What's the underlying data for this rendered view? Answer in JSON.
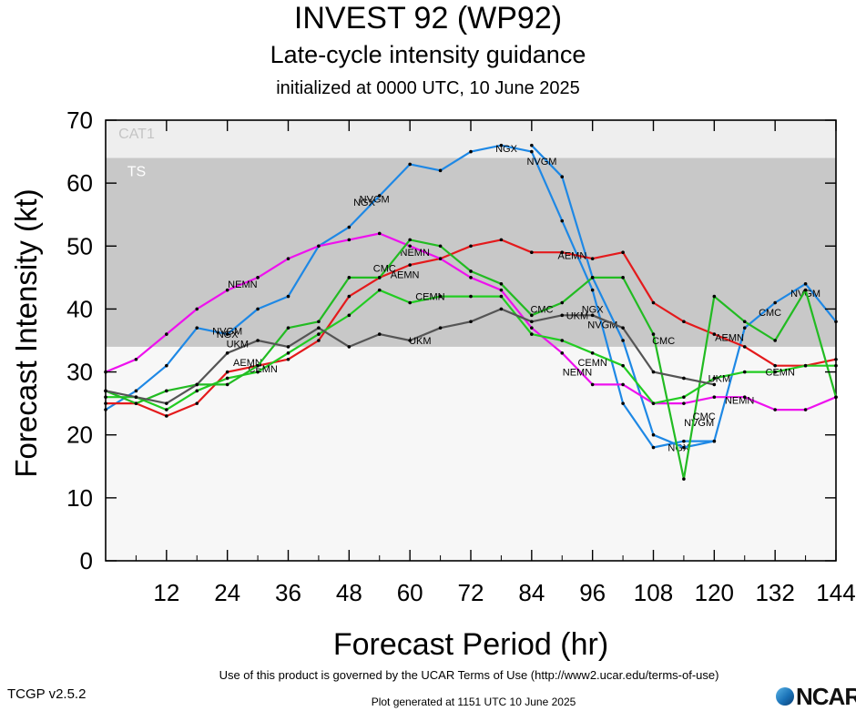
{
  "title": "INVEST 92 (WP92)",
  "subtitle": "Late-cycle intensity guidance",
  "initialized": "initialized at 0000 UTC, 10 June 2025",
  "footer": {
    "terms": "Use of this product is governed by the UCAR Terms of Use (http://www2.ucar.edu/terms-of-use)",
    "version": "TCGP v2.5.2",
    "generated": "Plot generated at 1151 UTC   10 June 2025",
    "logo_text": "NCAR"
  },
  "chart_data": {
    "type": "line",
    "xlabel": "Forecast Period (hr)",
    "ylabel": "Forecast Intensity (kt)",
    "xlim": [
      0,
      144
    ],
    "ylim": [
      0,
      70
    ],
    "xticks": [
      12,
      24,
      36,
      48,
      60,
      72,
      84,
      96,
      108,
      120,
      132,
      144
    ],
    "yticks": [
      0,
      10,
      20,
      30,
      40,
      50,
      60,
      70
    ],
    "bands": [
      {
        "label": "TS",
        "from": 34,
        "to": 64,
        "color": "#c8c8c8"
      },
      {
        "label": "CAT1",
        "from": 64,
        "to": 70,
        "color": "#eeeeee"
      }
    ],
    "series": [
      {
        "name": "NGX",
        "color": "#1e88e5",
        "x": [
          0,
          6,
          12,
          18,
          24,
          30,
          36,
          42,
          48,
          54,
          60,
          66,
          72,
          78,
          84,
          90,
          96,
          102,
          108,
          114,
          120
        ],
        "y": [
          24,
          27,
          31,
          37,
          36,
          40,
          42,
          50,
          53,
          58,
          63,
          62,
          65,
          66,
          65,
          54,
          43,
          25,
          18,
          19,
          19
        ],
        "labels": [
          [
            24,
            36
          ],
          [
            51,
            57
          ],
          [
            79,
            65.5
          ],
          [
            96,
            40
          ],
          [
            113,
            18
          ]
        ]
      },
      {
        "name": "NVGM",
        "color": "#1e88e5",
        "x": [
          84,
          90,
          96,
          102,
          108,
          114,
          120,
          126,
          132,
          138,
          144
        ],
        "y": [
          66,
          61,
          45,
          35,
          20,
          18,
          19,
          37,
          41,
          44,
          38
        ],
        "labels": [
          [
            24,
            36.5
          ],
          [
            53,
            57.5
          ],
          [
            86,
            63.5
          ],
          [
            98,
            37.5
          ],
          [
            117,
            22
          ],
          [
            138,
            42.5
          ]
        ]
      },
      {
        "name": "AEMN",
        "color": "#e41a1c",
        "x": [
          0,
          6,
          12,
          18,
          24,
          30,
          36,
          42,
          48,
          54,
          60,
          66,
          72,
          78,
          84,
          90,
          96,
          102,
          108,
          114,
          120,
          126,
          132,
          138,
          144
        ],
        "y": [
          25,
          25,
          23,
          25,
          30,
          31,
          32,
          35,
          42,
          45,
          47,
          48,
          50,
          51,
          49,
          49,
          48,
          49,
          41,
          38,
          36,
          34,
          31,
          31,
          32
        ],
        "labels": [
          [
            28,
            31.5
          ],
          [
            59,
            45.5
          ],
          [
            92,
            48.5
          ],
          [
            123,
            35.5
          ]
        ]
      },
      {
        "name": "NEMN",
        "color": "#ee11ee",
        "x": [
          0,
          6,
          12,
          18,
          24,
          30,
          36,
          42,
          48,
          54,
          60,
          66,
          72,
          78,
          84,
          90,
          96,
          102,
          108,
          114,
          120,
          126,
          132,
          138,
          144
        ],
        "y": [
          30,
          32,
          36,
          40,
          43,
          45,
          48,
          50,
          51,
          52,
          50,
          48,
          45,
          43,
          37,
          33,
          28,
          28,
          25,
          25,
          26,
          26,
          24,
          24,
          26
        ],
        "labels": [
          [
            27,
            44
          ],
          [
            61,
            49
          ],
          [
            93,
            30
          ],
          [
            125,
            25.5
          ]
        ]
      },
      {
        "name": "CEMN",
        "color": "#22cc22",
        "x": [
          0,
          6,
          12,
          18,
          24,
          30,
          36,
          42,
          48,
          54,
          60,
          66,
          72,
          78,
          84,
          90,
          96,
          102,
          108,
          114,
          120,
          126,
          132,
          138,
          144
        ],
        "y": [
          26,
          26,
          24,
          27,
          29,
          30,
          33,
          36,
          39,
          43,
          41,
          42,
          42,
          42,
          36,
          35,
          33,
          31,
          25,
          26,
          29,
          30,
          30,
          31,
          31
        ],
        "labels": [
          [
            31,
            30.5
          ],
          [
            64,
            42
          ],
          [
            96,
            31.5
          ],
          [
            133,
            30
          ]
        ]
      },
      {
        "name": "CMC",
        "color": "#22bb22",
        "x": [
          0,
          6,
          12,
          18,
          24,
          30,
          36,
          42,
          48,
          54,
          60,
          66,
          72,
          78,
          84,
          90,
          96,
          102,
          108,
          114,
          120,
          126,
          132,
          138,
          144
        ],
        "y": [
          27,
          25,
          27,
          28,
          28,
          31,
          37,
          38,
          45,
          45,
          51,
          50,
          46,
          44,
          39,
          41,
          45,
          45,
          36,
          13,
          42,
          38,
          35,
          43,
          26
        ],
        "labels": [
          [
            55,
            46.5
          ],
          [
            86,
            40
          ],
          [
            110,
            35
          ],
          [
            118,
            23
          ],
          [
            131,
            39.5
          ]
        ]
      },
      {
        "name": "UKM",
        "color": "#555555",
        "x": [
          0,
          6,
          12,
          18,
          24,
          30,
          36,
          42,
          48,
          54,
          60,
          66,
          72,
          78,
          84,
          90,
          96,
          102,
          108,
          114,
          120
        ],
        "y": [
          27,
          26,
          25,
          28,
          33,
          35,
          34,
          37,
          34,
          36,
          35,
          37,
          38,
          40,
          38,
          39,
          39,
          37,
          30,
          29,
          28
        ],
        "labels": [
          [
            26,
            34.5
          ],
          [
            62,
            35
          ],
          [
            93,
            39
          ],
          [
            121,
            29
          ]
        ]
      }
    ]
  }
}
